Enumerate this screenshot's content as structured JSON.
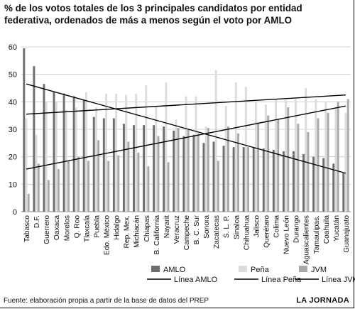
{
  "title": "% de los votos totales de los 3 principales candidatos  por entidad federativa, ordenados de más a menos según el voto por AMLO",
  "source": "Fuente: elaboración propia a partir de la base de datos del PREP",
  "brand": "LA JORNADA",
  "chart_data": {
    "type": "bar",
    "ylim": [
      0,
      60
    ],
    "yticks": [
      0,
      10,
      20,
      30,
      40,
      50,
      60
    ],
    "grid": true,
    "categories": [
      "Tabasco",
      "D.F.",
      "Guerrero",
      "Oaxaca",
      "Morelos",
      "Q. Roo",
      "Tlaxcala",
      "Puebla",
      "Edo. México",
      "Hidalgo",
      "Rep. Mex.",
      "Michiacán",
      "Chiapas",
      "B. California",
      "Nayarit",
      "Veracruz",
      "Campeche",
      "B. C. Sur",
      "Sonora",
      "Zacatecas",
      "S. L. P.",
      "Sinaloa",
      "Chihuahua",
      "Jalisco",
      "Querétaro",
      "Colima",
      "Nuevo León",
      "Durango",
      "Aguascalientes",
      "Tamaulipas.",
      "Coahuila",
      "Yucatán",
      "Guanajuato"
    ],
    "series": [
      {
        "name": "AMLO",
        "color": "#6e6e6e",
        "values": [
          59.5,
          53,
          46.5,
          43.5,
          43,
          42,
          40.5,
          34.5,
          34,
          34,
          32,
          31.5,
          31.5,
          31.5,
          31,
          29.5,
          27.5,
          28,
          25,
          25.5,
          24,
          23.5,
          23.5,
          23.5,
          23,
          22.5,
          22,
          22,
          21,
          20,
          19.5,
          17.5,
          14
        ]
      },
      {
        "name": "Peña",
        "color": "#dcdcdc",
        "values": [
          34,
          28,
          40,
          40,
          37,
          38,
          43.5,
          38,
          43,
          43,
          42.5,
          43,
          46,
          38.5,
          47,
          33.5,
          42,
          42,
          31,
          51.5,
          38.5,
          47,
          45.5,
          40,
          39,
          41,
          40.5,
          41,
          45,
          41,
          40,
          38,
          36
        ]
      },
      {
        "name": "JVM",
        "color": "#a9a9a9",
        "values": [
          6.5,
          17.5,
          11.5,
          15.5,
          18.5,
          20,
          18.5,
          26,
          18.5,
          20.5,
          25.5,
          21.5,
          16.5,
          27.5,
          18,
          30.5,
          30,
          28.5,
          30.5,
          18.5,
          31,
          28.5,
          23.5,
          32.5,
          35,
          33.5,
          38,
          32,
          29,
          34,
          36,
          40,
          41
        ]
      }
    ],
    "trend_lines": [
      {
        "name": "Línea AMLO",
        "from": 46.5,
        "to": 14
      },
      {
        "name": "Línea Peña",
        "from": 35.5,
        "to": 42.5
      },
      {
        "name": "Línea JVM",
        "from": 15.5,
        "to": 38.5
      }
    ]
  }
}
